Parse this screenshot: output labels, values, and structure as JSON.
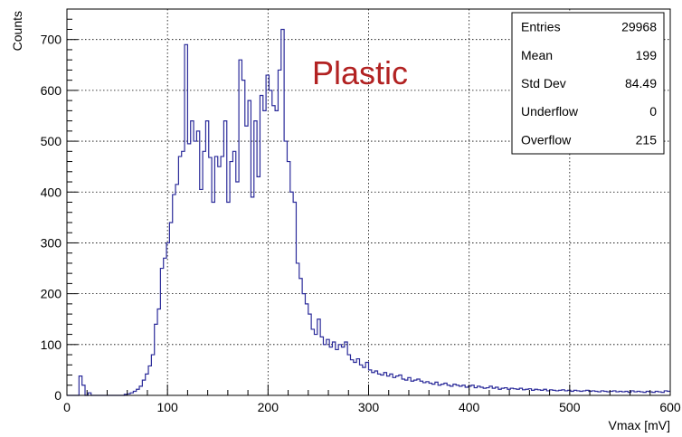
{
  "chart_data": {
    "type": "histogram",
    "xlabel": "Vmax [mV]",
    "ylabel": "Counts",
    "xlim": [
      0,
      600
    ],
    "ylim": [
      0,
      760
    ],
    "x_ticks": [
      0,
      100,
      200,
      300,
      400,
      500,
      600
    ],
    "y_ticks": [
      0,
      100,
      200,
      300,
      400,
      500,
      600,
      700
    ],
    "grid": true,
    "bin_width": 3,
    "annotation": "Plastic",
    "annotation_color": "#b22222",
    "line_color": "#2b2b9a",
    "series": [
      {
        "x": [
          0,
          3,
          6,
          9,
          12,
          15,
          18,
          21,
          24,
          27,
          30,
          33,
          36,
          39,
          42,
          45,
          48,
          51,
          54,
          57,
          60,
          63,
          66,
          69,
          72,
          75,
          78,
          81,
          84,
          87,
          90,
          93,
          96,
          99,
          102,
          105,
          108,
          111,
          114,
          117,
          120,
          123,
          126,
          129,
          132,
          135,
          138,
          141,
          144,
          147,
          150,
          153,
          156,
          159,
          162,
          165,
          168,
          171,
          174,
          177,
          180,
          183,
          186,
          189,
          192,
          195,
          198,
          201,
          204,
          207,
          210,
          213,
          216,
          219,
          222,
          225,
          228,
          231,
          234,
          237,
          240,
          243,
          246,
          249,
          252,
          255,
          258,
          261,
          264,
          267,
          270,
          273,
          276,
          279,
          282,
          285,
          288,
          291,
          294,
          297,
          300,
          303,
          306,
          309,
          312,
          315,
          318,
          321,
          324,
          327,
          330,
          333,
          336,
          339,
          342,
          345,
          348,
          351,
          354,
          357,
          360,
          363,
          366,
          369,
          372,
          375,
          378,
          381,
          384,
          387,
          390,
          393,
          396,
          399,
          402,
          405,
          408,
          411,
          414,
          417,
          420,
          423,
          426,
          429,
          432,
          435,
          438,
          441,
          444,
          447,
          450,
          453,
          456,
          459,
          462,
          465,
          468,
          471,
          474,
          477,
          480,
          483,
          486,
          489,
          492,
          495,
          498,
          501,
          504,
          507,
          510,
          513,
          516,
          519,
          522,
          525,
          528,
          531,
          534,
          537,
          540,
          543,
          546,
          549,
          552,
          555,
          558,
          561,
          564,
          567,
          570,
          573,
          576,
          579,
          582,
          585,
          588,
          591,
          594,
          597
        ],
        "values": [
          0,
          0,
          0,
          0,
          38,
          20,
          0,
          5,
          0,
          0,
          0,
          0,
          0,
          0,
          0,
          0,
          0,
          0,
          0,
          2,
          3,
          5,
          8,
          12,
          18,
          30,
          42,
          58,
          80,
          140,
          170,
          250,
          270,
          300,
          340,
          395,
          415,
          470,
          480,
          690,
          495,
          540,
          500,
          520,
          405,
          480,
          540,
          468,
          380,
          470,
          450,
          470,
          540,
          380,
          460,
          480,
          420,
          660,
          620,
          530,
          580,
          390,
          540,
          430,
          590,
          560,
          630,
          600,
          570,
          560,
          640,
          720,
          500,
          460,
          400,
          380,
          260,
          230,
          200,
          180,
          160,
          130,
          120,
          150,
          115,
          100,
          110,
          95,
          105,
          90,
          100,
          95,
          105,
          80,
          70,
          65,
          72,
          60,
          55,
          65,
          50,
          45,
          48,
          42,
          40,
          45,
          38,
          42,
          35,
          38,
          40,
          32,
          30,
          35,
          28,
          30,
          32,
          28,
          25,
          27,
          24,
          22,
          26,
          20,
          22,
          24,
          20,
          18,
          22,
          20,
          18,
          20,
          16,
          18,
          20,
          15,
          18,
          16,
          14,
          15,
          18,
          14,
          16,
          12,
          14,
          15,
          12,
          14,
          13,
          12,
          14,
          11,
          12,
          13,
          10,
          12,
          11,
          10,
          12,
          9,
          11,
          10,
          9,
          10,
          11,
          9,
          10,
          8,
          10,
          9,
          8,
          9,
          10,
          8,
          9,
          8,
          7,
          9,
          8,
          7,
          8,
          9,
          7,
          8,
          7,
          8,
          6,
          9,
          7,
          8,
          7,
          6,
          8,
          7,
          6,
          8,
          7,
          6,
          9,
          8
        ]
      }
    ]
  },
  "stats_box": {
    "rows": [
      {
        "label": "Entries",
        "value": "29968"
      },
      {
        "label": "Mean",
        "value": "199"
      },
      {
        "label": "Std Dev",
        "value": "84.49"
      },
      {
        "label": "Underflow",
        "value": "0"
      },
      {
        "label": "Overflow",
        "value": "215"
      }
    ]
  }
}
